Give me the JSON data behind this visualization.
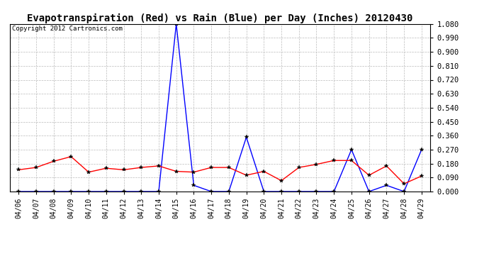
{
  "title": "Evapotranspiration (Red) vs Rain (Blue) per Day (Inches) 20120430",
  "copyright_text": "Copyright 2012 Cartronics.com",
  "dates": [
    "04/06",
    "04/07",
    "04/08",
    "04/09",
    "04/10",
    "04/11",
    "04/12",
    "04/13",
    "04/14",
    "04/15",
    "04/16",
    "04/17",
    "04/18",
    "04/19",
    "04/20",
    "04/21",
    "04/22",
    "04/23",
    "04/24",
    "04/25",
    "04/26",
    "04/27",
    "04/28",
    "04/29"
  ],
  "rain": [
    0.0,
    0.0,
    0.0,
    0.0,
    0.0,
    0.0,
    0.0,
    0.0,
    0.0,
    1.08,
    0.04,
    0.0,
    0.0,
    0.35,
    0.0,
    0.0,
    0.0,
    0.0,
    0.0,
    0.27,
    0.0,
    0.04,
    0.0,
    0.27
  ],
  "et": [
    0.14,
    0.155,
    0.195,
    0.225,
    0.125,
    0.15,
    0.14,
    0.155,
    0.165,
    0.13,
    0.125,
    0.155,
    0.155,
    0.105,
    0.13,
    0.07,
    0.155,
    0.175,
    0.2,
    0.2,
    0.105,
    0.165,
    0.05,
    0.1
  ],
  "ylim": [
    0.0,
    1.08
  ],
  "yticks": [
    0.0,
    0.09,
    0.18,
    0.27,
    0.36,
    0.45,
    0.54,
    0.63,
    0.72,
    0.81,
    0.9,
    0.99,
    1.08
  ],
  "rain_color": "#0000ff",
  "et_color": "#ff0000",
  "bg_color": "#ffffff",
  "plot_bg_color": "#ffffff",
  "grid_color": "#bbbbbb",
  "title_fontsize": 10,
  "copyright_fontsize": 6.5,
  "tick_fontsize": 7.5
}
